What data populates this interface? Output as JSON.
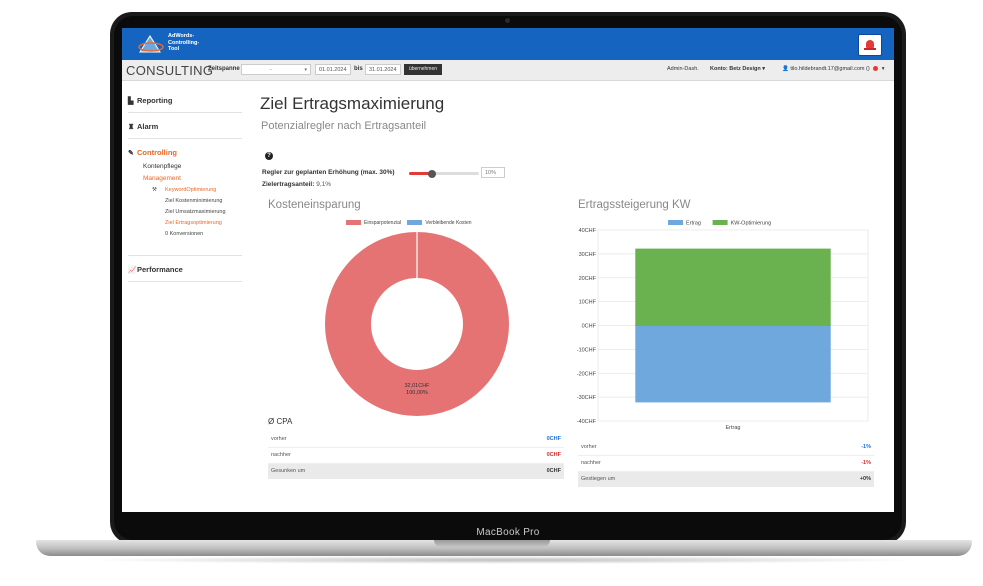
{
  "device": {
    "label": "MacBook Pro"
  },
  "app": {
    "logo_text": [
      "AdWords-",
      "Controlling-",
      "Tool"
    ],
    "brand": "CONSULTING"
  },
  "toolbar": {
    "zeitspanne_label": "Zeitspanne",
    "select_value": "--",
    "date_from": "01.01.2024",
    "bis_label": "bis",
    "date_to": "31.01.2024",
    "apply_label": "übernehmen",
    "admin_dash": "Admin-Dash.",
    "konto_label": "Konto: Betz Design",
    "user_email": "tilo.hildebrandt.17@gmail.com ()"
  },
  "sidebar": {
    "reporting": "Reporting",
    "alarm": "Alarm",
    "controlling": "Controlling",
    "kontenpflege": "Kontenpflege",
    "management": "Management",
    "sub_items": [
      "KeywordOptimierung",
      "Ziel Kostenminimierung",
      "Ziel Umsatzmaximierung",
      "Ziel Ertragsoptimierung",
      "0 Konversionen"
    ],
    "performance": "Performance"
  },
  "page": {
    "title": "Ziel Ertragsmaximierung",
    "subtitle": "Potenzialregler nach Ertragsanteil",
    "help": "?",
    "regler_label": "Regler zur geplanten Erhöhung (max. 30%)",
    "regler_value": 0.1,
    "regler_input": "10%",
    "zielertrag_label": "Zielertragsanteil:",
    "zielertrag_value": "9,1%"
  },
  "kosten": {
    "title": "Kosteneinsparung",
    "legend": [
      "Einsparpotenzial",
      "Verbleibende Kosten"
    ],
    "center_value": "32,01CHF",
    "center_pct": "100,00%",
    "colors": {
      "einspar": "#e57373",
      "verbleibend": "#6fa8dc"
    }
  },
  "cpa": {
    "title": "Ø CPA",
    "rows": [
      {
        "label": "vorher",
        "value": "0CHF"
      },
      {
        "label": "nachher",
        "value": "0CHF"
      },
      {
        "label": "Gesunken um",
        "value": "0CHF"
      }
    ]
  },
  "ertrag": {
    "title": "Ertragssteigerung KW",
    "rows": [
      {
        "label": "vorher",
        "value": "-1%"
      },
      {
        "label": "nachher",
        "value": "-1%"
      },
      {
        "label": "Gestiegen um",
        "value": "+0%"
      }
    ]
  },
  "chart_data": [
    {
      "type": "pie",
      "title": "Kosteneinsparung",
      "labels": [
        "Einsparpotenzial",
        "Verbleibende Kosten"
      ],
      "values": [
        32.01,
        0
      ],
      "center_labels": [
        "32,01CHF",
        "100,00%"
      ],
      "legend": "top",
      "colors": [
        "#e57373",
        "#6fa8dc"
      ]
    },
    {
      "type": "bar",
      "title": "Ertragssteigerung KW",
      "categories": [
        "Ertrag"
      ],
      "series": [
        {
          "name": "Ertrag",
          "values": [
            -32
          ]
        },
        {
          "name": "KW-Optimierung",
          "values": [
            32
          ]
        }
      ],
      "stacked": true,
      "ylim": [
        -40,
        40
      ],
      "yticks": [
        40,
        30,
        20,
        10,
        0,
        -10,
        -20,
        -30,
        -40
      ],
      "tick_suffix": "CHF",
      "legend": "top",
      "grid": true,
      "colors": [
        "#6fa8dc",
        "#6ab150"
      ]
    }
  ]
}
